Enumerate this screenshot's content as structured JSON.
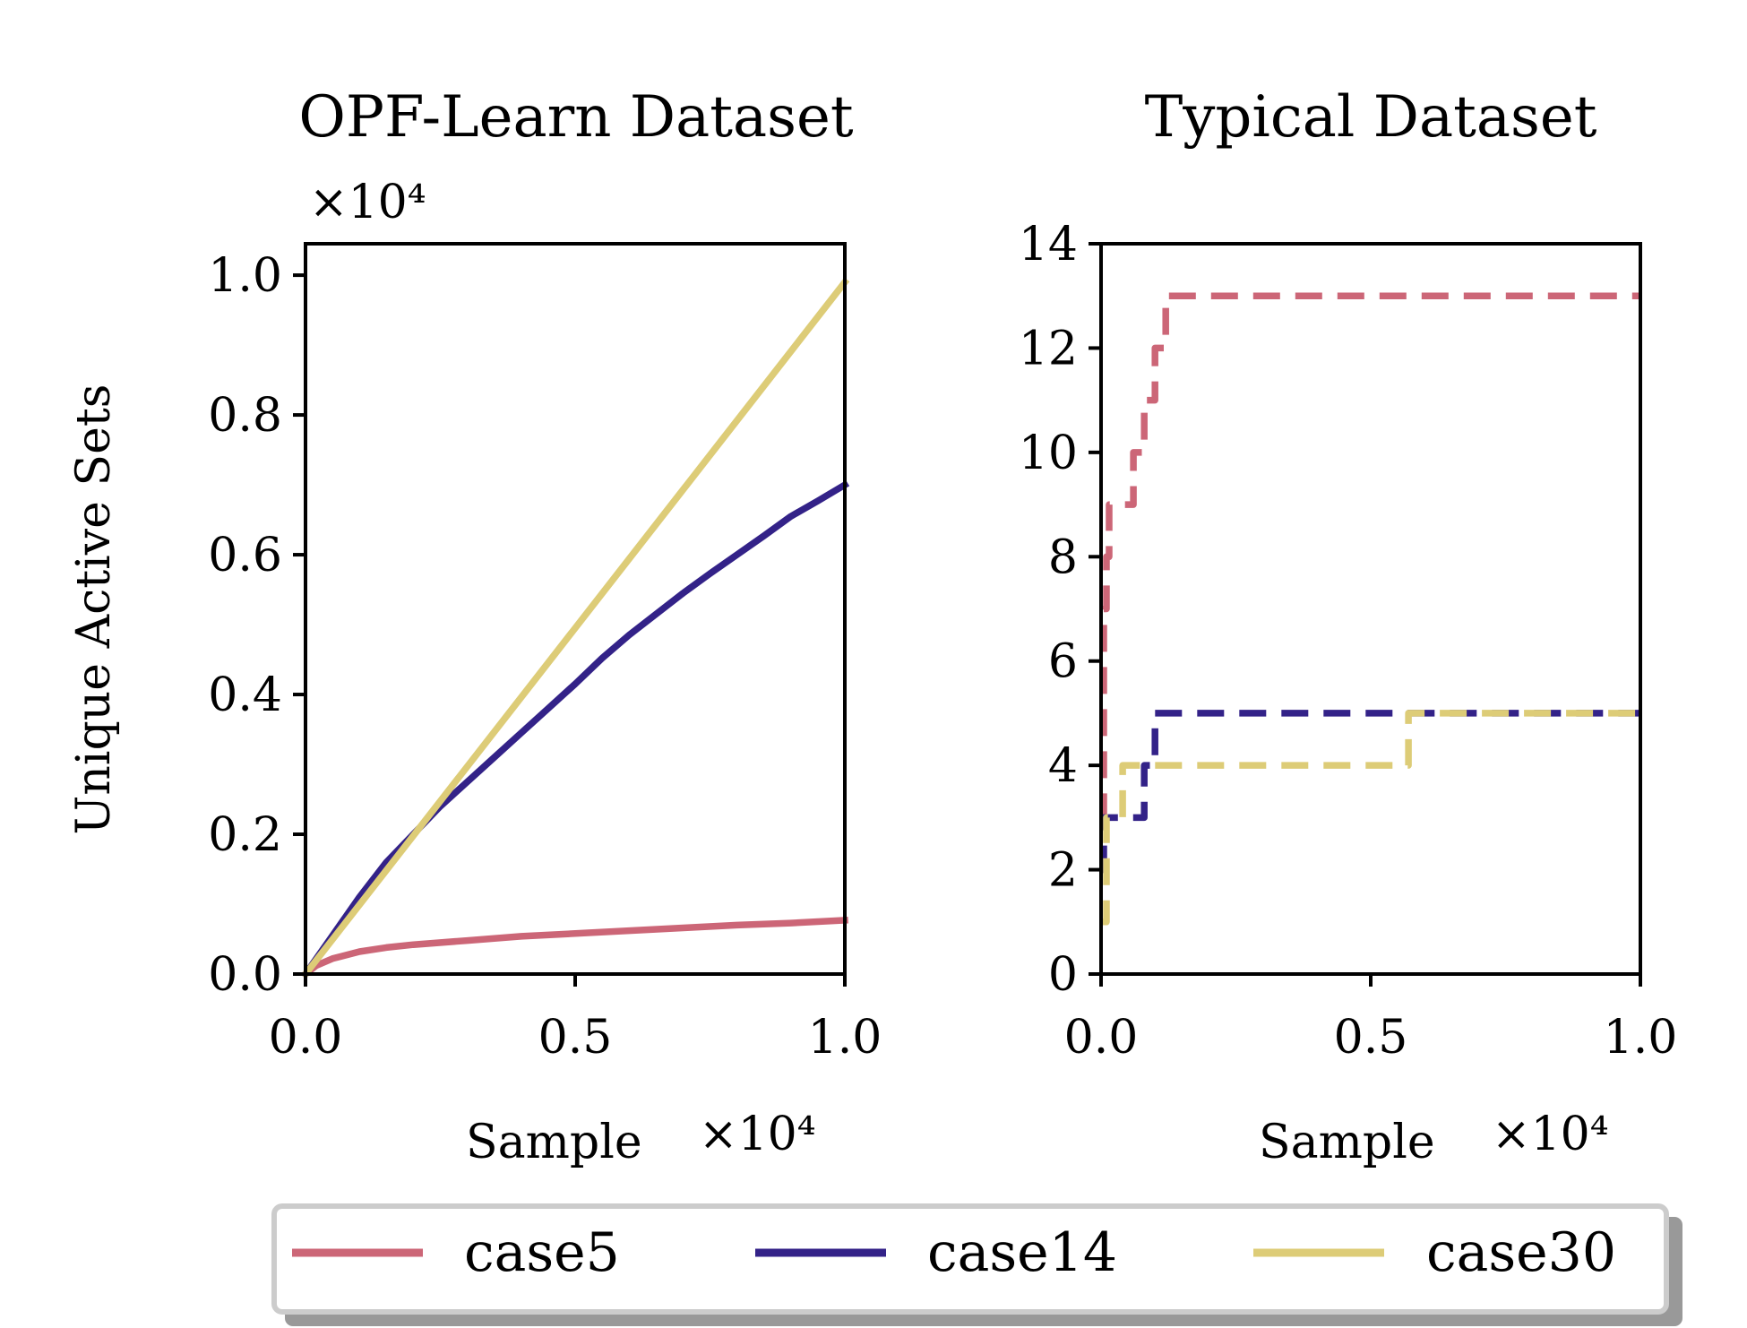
{
  "chart_data": [
    {
      "type": "line",
      "title": "OPF-Learn Dataset",
      "xlabel": "Sample",
      "ylabel": "Unique Active Sets",
      "x_offset_label": "×10⁴",
      "y_offset_label": "×10⁴",
      "xlim": [
        0,
        1.0
      ],
      "ylim": [
        0,
        1.045
      ],
      "xticks": [
        0.0,
        0.5,
        1.0
      ],
      "xtick_labels": [
        "0.0",
        "0.5",
        "1.0"
      ],
      "yticks": [
        0.0,
        0.2,
        0.4,
        0.6,
        0.8,
        1.0
      ],
      "ytick_labels": [
        "0.0",
        "0.2",
        "0.4",
        "0.6",
        "0.8",
        "1.0"
      ],
      "grid": false,
      "series": [
        {
          "name": "case5",
          "color": "#cc6677",
          "style": "solid",
          "x": [
            0,
            0.02,
            0.05,
            0.1,
            0.15,
            0.2,
            0.3,
            0.4,
            0.5,
            0.6,
            0.7,
            0.8,
            0.9,
            1.0
          ],
          "y": [
            0,
            0.012,
            0.022,
            0.032,
            0.038,
            0.042,
            0.048,
            0.054,
            0.058,
            0.062,
            0.066,
            0.07,
            0.073,
            0.077
          ]
        },
        {
          "name": "case14",
          "color": "#332288",
          "style": "solid",
          "x": [
            0,
            0.05,
            0.1,
            0.15,
            0.2,
            0.25,
            0.3,
            0.35,
            0.4,
            0.45,
            0.5,
            0.55,
            0.6,
            0.65,
            0.7,
            0.75,
            0.8,
            0.85,
            0.9,
            0.95,
            1.0
          ],
          "y": [
            0,
            0.055,
            0.11,
            0.16,
            0.2,
            0.24,
            0.275,
            0.31,
            0.345,
            0.38,
            0.415,
            0.452,
            0.485,
            0.515,
            0.545,
            0.573,
            0.6,
            0.627,
            0.655,
            0.677,
            0.7
          ]
        },
        {
          "name": "case30",
          "color": "#ddcc77",
          "style": "solid",
          "x": [
            0,
            1.0
          ],
          "y": [
            0,
            0.99
          ]
        }
      ]
    },
    {
      "type": "line",
      "title": "Typical Dataset",
      "xlabel": "Sample",
      "ylabel": "",
      "x_offset_label": "×10⁴",
      "xlim": [
        0,
        1.0
      ],
      "ylim": [
        0,
        14
      ],
      "xticks": [
        0.0,
        0.5,
        1.0
      ],
      "xtick_labels": [
        "0.0",
        "0.5",
        "1.0"
      ],
      "yticks": [
        0,
        2,
        4,
        6,
        8,
        10,
        12,
        14
      ],
      "ytick_labels": [
        "0",
        "2",
        "4",
        "6",
        "8",
        "10",
        "12",
        "14"
      ],
      "grid": false,
      "series": [
        {
          "name": "case5",
          "color": "#cc6677",
          "style": "dashed",
          "steps": [
            [
              0,
              3
            ],
            [
              0.005,
              7
            ],
            [
              0.01,
              8
            ],
            [
              0.015,
              9
            ],
            [
              0.06,
              10
            ],
            [
              0.08,
              11
            ],
            [
              0.1,
              12
            ],
            [
              0.12,
              13
            ],
            [
              1.0,
              13
            ]
          ]
        },
        {
          "name": "case14",
          "color": "#332288",
          "style": "dashed",
          "steps": [
            [
              0,
              2
            ],
            [
              0.005,
              3
            ],
            [
              0.08,
              4
            ],
            [
              0.1,
              5
            ],
            [
              1.0,
              5
            ]
          ]
        },
        {
          "name": "case30",
          "color": "#ddcc77",
          "style": "dashed",
          "steps": [
            [
              0,
              1
            ],
            [
              0.01,
              3
            ],
            [
              0.04,
              4
            ],
            [
              0.57,
              5
            ],
            [
              1.0,
              5
            ]
          ]
        }
      ]
    }
  ],
  "legend": {
    "placement": "bottom-center",
    "items": [
      {
        "label": "case5",
        "color": "#cc6677"
      },
      {
        "label": "case14",
        "color": "#332288"
      },
      {
        "label": "case30",
        "color": "#ddcc77"
      }
    ]
  }
}
